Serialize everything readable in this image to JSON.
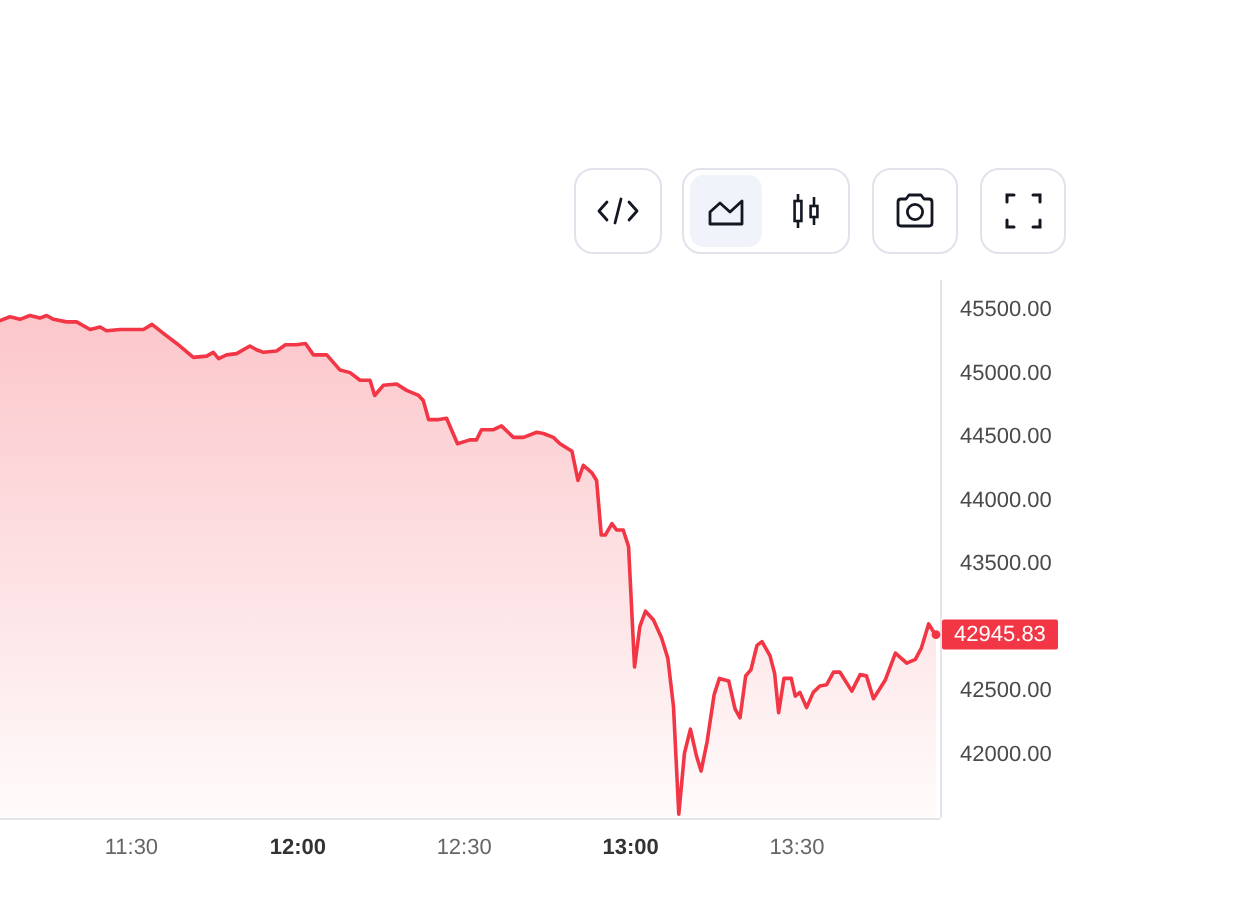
{
  "chart_data": {
    "type": "area",
    "x": [
      11.105,
      11.135,
      11.165,
      11.195,
      11.225,
      11.245,
      11.266,
      11.305,
      11.335,
      11.376,
      11.406,
      11.425,
      11.466,
      11.536,
      11.562,
      11.596,
      11.636,
      11.686,
      11.726,
      11.746,
      11.762,
      11.786,
      11.816,
      11.856,
      11.876,
      11.897,
      11.936,
      11.963,
      11.996,
      12.023,
      12.047,
      12.087,
      12.127,
      12.157,
      12.187,
      12.217,
      12.231,
      12.257,
      12.297,
      12.327,
      12.363,
      12.377,
      12.393,
      12.423,
      12.447,
      12.48,
      12.517,
      12.537,
      12.552,
      12.588,
      12.612,
      12.648,
      12.678,
      12.718,
      12.738,
      12.768,
      12.788,
      12.824,
      12.842,
      12.858,
      12.884,
      12.898,
      12.912,
      12.924,
      12.944,
      12.958,
      12.978,
      12.994,
      13.012,
      13.028,
      13.045,
      13.069,
      13.093,
      13.112,
      13.129,
      13.145,
      13.162,
      13.18,
      13.198,
      13.212,
      13.23,
      13.251,
      13.267,
      13.295,
      13.314,
      13.329,
      13.346,
      13.362,
      13.38,
      13.395,
      13.419,
      13.433,
      13.445,
      13.461,
      13.483,
      13.495,
      13.509,
      13.529,
      13.549,
      13.569,
      13.589,
      13.61,
      13.629,
      13.665,
      13.69,
      13.709,
      13.73,
      13.766,
      13.796,
      13.83,
      13.856,
      13.874,
      13.896,
      13.91,
      13.918
    ],
    "series": [
      {
        "color": "#f23645",
        "values": [
          45420,
          45450,
          45430,
          45460,
          45440,
          45460,
          45430,
          45410,
          45410,
          45350,
          45370,
          45340,
          45350,
          45350,
          45390,
          45320,
          45240,
          45130,
          45140,
          45170,
          45120,
          45150,
          45160,
          45220,
          45190,
          45170,
          45180,
          45230,
          45230,
          45240,
          45150,
          45150,
          45030,
          45010,
          44950,
          44950,
          44830,
          44910,
          44920,
          44870,
          44830,
          44790,
          44640,
          44640,
          44650,
          44450,
          44480,
          44480,
          44560,
          44560,
          44590,
          44500,
          44500,
          44540,
          44530,
          44500,
          44450,
          44390,
          44160,
          44280,
          44220,
          44160,
          43730,
          43730,
          43820,
          43770,
          43770,
          43640,
          42690,
          43010,
          43130,
          43060,
          42920,
          42760,
          42380,
          41530,
          42010,
          42200,
          41990,
          41870,
          42100,
          42470,
          42600,
          42580,
          42360,
          42290,
          42620,
          42670,
          42860,
          42890,
          42780,
          42640,
          42330,
          42600,
          42600,
          42460,
          42490,
          42370,
          42490,
          42540,
          42550,
          42650,
          42650,
          42500,
          42630,
          42620,
          42440,
          42590,
          42800,
          42720,
          42750,
          42840,
          43030,
          42970,
          42945.83
        ]
      }
    ],
    "xlim": [
      11.105,
      13.93
    ],
    "xticks": [
      {
        "value": 11.5,
        "label": "11:30"
      },
      {
        "value": 12,
        "label": "12:00"
      },
      {
        "value": 12.5,
        "label": "12:30"
      },
      {
        "value": 13,
        "label": "13:00"
      },
      {
        "value": 13.5,
        "label": "13:30"
      }
    ],
    "ylim": [
      41500,
      45740
    ],
    "yticks": [
      {
        "value": 42000,
        "label": "42000.00"
      },
      {
        "value": 42500,
        "label": "42500.00"
      },
      {
        "value": 43500,
        "label": "43500.00"
      },
      {
        "value": 44000,
        "label": "44000.00"
      },
      {
        "value": 44500,
        "label": "44500.00"
      },
      {
        "value": 45000,
        "label": "45000.00"
      },
      {
        "value": 45500,
        "label": "45500.00"
      }
    ],
    "annotations": [
      {
        "text": "42945.83",
        "x": 13.918,
        "y": 42945.83
      }
    ]
  }
}
